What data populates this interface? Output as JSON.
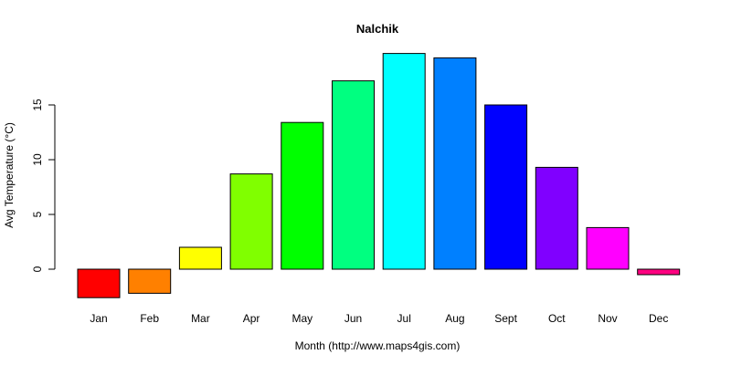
{
  "chart_data": {
    "type": "bar",
    "title": "Nalchik",
    "xlabel": "Month (http://www.maps4gis.com)",
    "ylabel": "Avg Temperature (°C)",
    "categories": [
      "Jan",
      "Feb",
      "Mar",
      "Apr",
      "May",
      "Jun",
      "Jul",
      "Aug",
      "Sept",
      "Oct",
      "Nov",
      "Dec"
    ],
    "values": [
      -2.6,
      -2.2,
      2.0,
      8.7,
      13.4,
      17.2,
      19.7,
      19.3,
      15.0,
      9.3,
      3.8,
      -0.5
    ],
    "colors": [
      "#ff0000",
      "#ff8000",
      "#ffff00",
      "#80ff00",
      "#00ff00",
      "#00ff80",
      "#00ffff",
      "#0080ff",
      "#0000ff",
      "#8000ff",
      "#ff00ff",
      "#ff0080"
    ],
    "yticks": [
      0,
      5,
      10,
      15
    ],
    "ylim": [
      -2.6,
      19.7
    ],
    "grid": false,
    "legend": "none"
  }
}
